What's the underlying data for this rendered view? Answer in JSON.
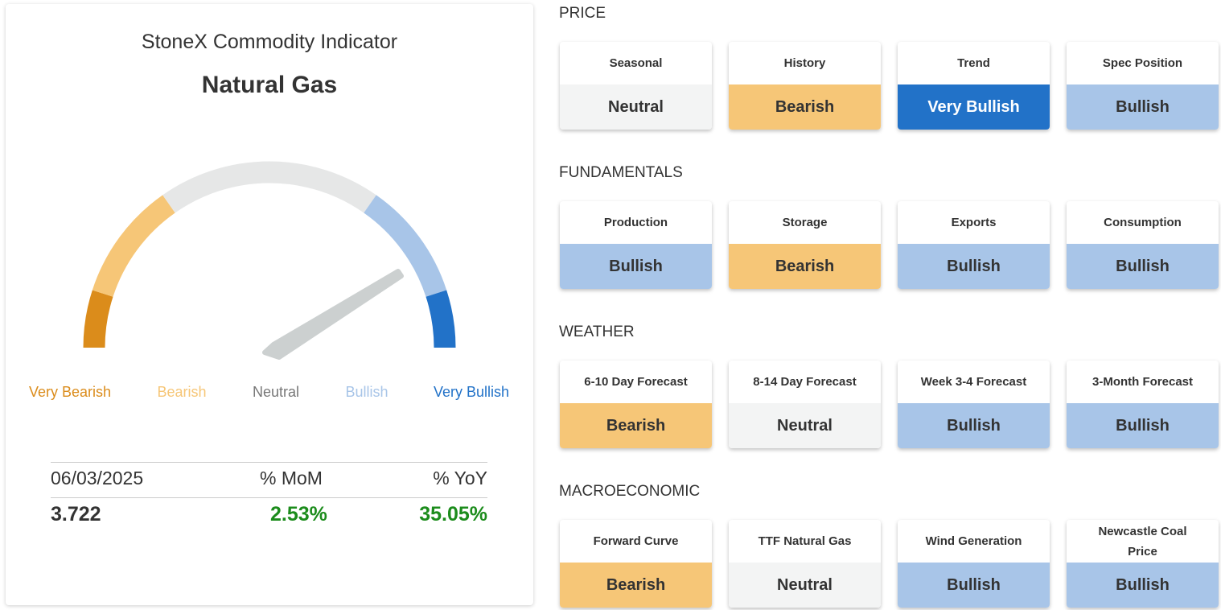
{
  "indicator": {
    "title": "StoneX Commodity Indicator",
    "commodity": "Natural Gas",
    "scale": [
      {
        "label": "Very Bearish",
        "color": "#db8c1b"
      },
      {
        "label": "Bearish",
        "color": "#f6c677"
      },
      {
        "label": "Neutral",
        "color": "#e6e7e7"
      },
      {
        "label": "Bullish",
        "color": "#a8c5e8"
      },
      {
        "label": "Very Bullish",
        "color": "#2272c8"
      }
    ],
    "stats": {
      "headers": [
        "06/03/2025",
        "% MoM",
        "% YoY"
      ],
      "values": [
        "3.722",
        "2.53%",
        "35.05%"
      ]
    }
  },
  "sections": [
    {
      "title": "PRICE",
      "cards": [
        {
          "label": "Seasonal",
          "status": "Neutral",
          "color": "#f3f4f4"
        },
        {
          "label": "History",
          "status": "Bearish",
          "color": "#f6c677"
        },
        {
          "label": "Trend",
          "status": "Very Bullish",
          "color": "#2272c8"
        },
        {
          "label": "Spec Position",
          "status": "Bullish",
          "color": "#a8c5e8"
        }
      ]
    },
    {
      "title": "FUNDAMENTALS",
      "cards": [
        {
          "label": "Production",
          "status": "Bullish",
          "color": "#a8c5e8"
        },
        {
          "label": "Storage",
          "status": "Bearish",
          "color": "#f6c677"
        },
        {
          "label": "Exports",
          "status": "Bullish",
          "color": "#a8c5e8"
        },
        {
          "label": "Consumption",
          "status": "Bullish",
          "color": "#a8c5e8"
        }
      ]
    },
    {
      "title": "WEATHER",
      "cards": [
        {
          "label": "6-10 Day Forecast",
          "status": "Bearish",
          "color": "#f6c677"
        },
        {
          "label": "8-14 Day Forecast",
          "status": "Neutral",
          "color": "#f3f4f4"
        },
        {
          "label": "Week 3-4 Forecast",
          "status": "Bullish",
          "color": "#a8c5e8"
        },
        {
          "label": "3-Month Forecast",
          "status": "Bullish",
          "color": "#a8c5e8"
        }
      ]
    },
    {
      "title": "MACROECONOMIC",
      "cards": [
        {
          "label": "Forward Curve",
          "status": "Bearish",
          "color": "#f6c677"
        },
        {
          "label": "TTF Natural Gas",
          "status": "Neutral",
          "color": "#f3f4f4"
        },
        {
          "label": "Wind Generation",
          "status": "Bullish",
          "color": "#a8c5e8"
        },
        {
          "label": "Newcastle Coal Price",
          "status": "Bullish",
          "color": "#a8c5e8"
        }
      ]
    }
  ]
}
